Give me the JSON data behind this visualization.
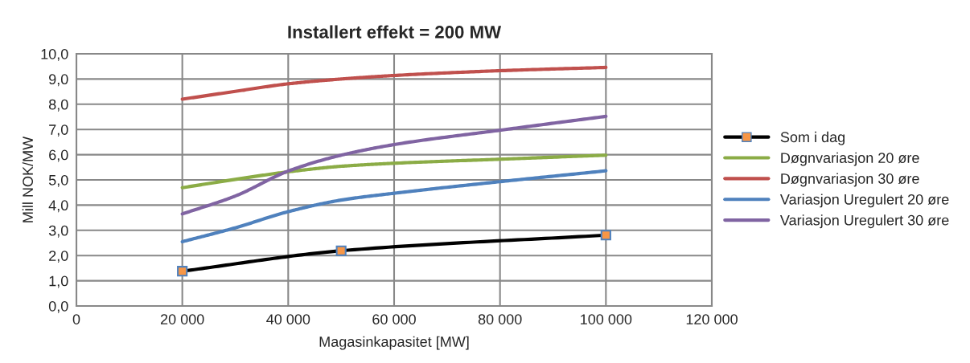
{
  "chart_data": {
    "type": "line",
    "title": "Installert effekt = 200 MW",
    "xlabel": "Magasinkapasitet [MW]",
    "ylabel": "Mill NOK/MW",
    "xlim": [
      0,
      120000
    ],
    "xticks": [
      0,
      {
        "value": 20000,
        "label": "20 000"
      },
      {
        "value": 40000,
        "label": "40 000"
      },
      {
        "value": 60000,
        "label": "60 000"
      },
      {
        "value": 80000,
        "label": "80 000"
      },
      {
        "value": 100000,
        "label": "100 000"
      },
      {
        "value": 120000,
        "label": "120 000"
      }
    ],
    "ylim": [
      0,
      10
    ],
    "yticks": [
      {
        "value": 0,
        "label": "0,0"
      },
      {
        "value": 1,
        "label": "1,0"
      },
      {
        "value": 2,
        "label": "2,0"
      },
      {
        "value": 3,
        "label": "3,0"
      },
      {
        "value": 4,
        "label": "4,0"
      },
      {
        "value": 5,
        "label": "5,0"
      },
      {
        "value": 6,
        "label": "6,0"
      },
      {
        "value": 7,
        "label": "7,0"
      },
      {
        "value": 8,
        "label": "8,0"
      },
      {
        "value": 9,
        "label": "9,0"
      },
      {
        "value": 10,
        "label": "10,0"
      }
    ],
    "grid": true,
    "legend": "right",
    "line_style": "solid",
    "series": [
      {
        "name": "Som i dag",
        "color": "#000000",
        "marker": "square",
        "x": [
          20000,
          50000,
          100000
        ],
        "values": [
          1.38,
          2.19,
          2.81
        ]
      },
      {
        "name": "Døgnvariasjon 20 øre",
        "color": "#8bac46",
        "marker": "none",
        "x": [
          20000,
          30000,
          40000,
          50000,
          60000,
          80000,
          100000
        ],
        "values": [
          4.69,
          5.02,
          5.32,
          5.54,
          5.66,
          5.82,
          5.98
        ]
      },
      {
        "name": "Døgnvariasjon 30 øre",
        "color": "#c0504d",
        "marker": "none",
        "x": [
          20000,
          30000,
          40000,
          50000,
          60000,
          80000,
          100000
        ],
        "values": [
          8.2,
          8.51,
          8.81,
          9.0,
          9.14,
          9.33,
          9.46
        ]
      },
      {
        "name": "Variasjon Uregulert 20 øre",
        "color": "#4f81bd",
        "marker": "none",
        "x": [
          20000,
          30000,
          40000,
          50000,
          60000,
          80000,
          100000
        ],
        "values": [
          2.55,
          3.1,
          3.74,
          4.2,
          4.47,
          4.93,
          5.36
        ]
      },
      {
        "name": "Variasjon Uregulert 30 øre",
        "color": "#8064a2",
        "marker": "none",
        "x": [
          20000,
          30000,
          40000,
          50000,
          60000,
          80000,
          100000
        ],
        "values": [
          3.65,
          4.36,
          5.35,
          5.98,
          6.4,
          6.97,
          7.52
        ]
      }
    ]
  }
}
